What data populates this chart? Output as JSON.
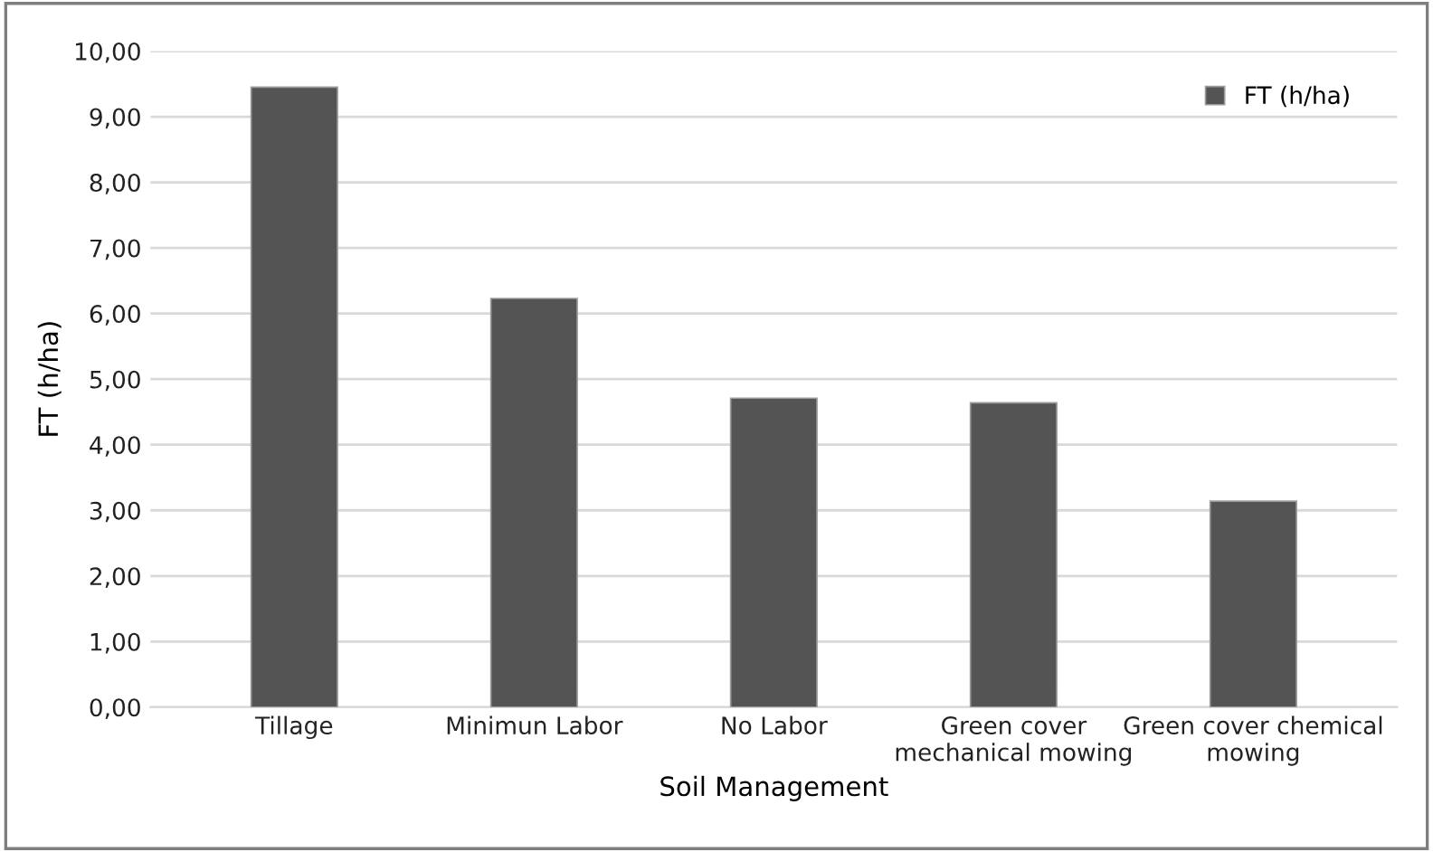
{
  "chart_data": {
    "type": "bar",
    "xlabel": "Soil Management",
    "ylabel": "FT (h/ha)",
    "categories": [
      "Tillage",
      "Minimun Labor",
      "No Labor",
      "Green cover\nmechanical mowing",
      "Green cover chemical\nmowing"
    ],
    "series": [
      {
        "name": "FT (h/ha)",
        "color": "#545454",
        "values": [
          9.45,
          6.23,
          4.71,
          4.64,
          3.14
        ]
      }
    ],
    "ylim": [
      0,
      10
    ],
    "yticks": [
      {
        "value": 0,
        "label": "0,00"
      },
      {
        "value": 1,
        "label": "1,00"
      },
      {
        "value": 2,
        "label": "2,00"
      },
      {
        "value": 3,
        "label": "3,00"
      },
      {
        "value": 4,
        "label": "4,00"
      },
      {
        "value": 5,
        "label": "5,00"
      },
      {
        "value": 6,
        "label": "6,00"
      },
      {
        "value": 7,
        "label": "7,00"
      },
      {
        "value": 8,
        "label": "8,00"
      },
      {
        "value": 9,
        "label": "9,00"
      },
      {
        "value": 10,
        "label": "10,00"
      }
    ],
    "grid": "y",
    "legend": "top right"
  }
}
